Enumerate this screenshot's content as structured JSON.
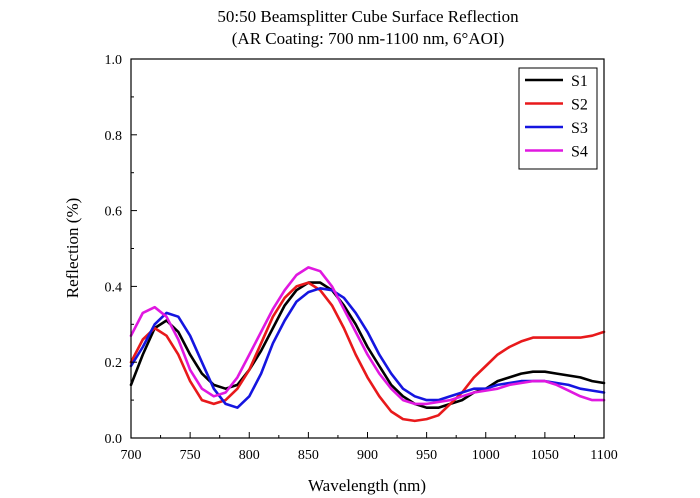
{
  "chart_data": {
    "type": "line",
    "title": "50:50 Beamsplitter Cube  Surface Reflection",
    "subtitle": "(AR Coating: 700 nm-1100 nm, 6°AOI)",
    "xlabel": "Wavelength (nm)",
    "ylabel": "Reflection (%)",
    "xlim": [
      700,
      1100
    ],
    "ylim": [
      0.0,
      1.0
    ],
    "xticks": [
      700,
      750,
      800,
      850,
      900,
      950,
      1000,
      1050,
      1100
    ],
    "yticks": [
      0.0,
      0.2,
      0.4,
      0.6,
      0.8,
      1.0
    ],
    "xtick_labels": [
      "700",
      "750",
      "800",
      "850",
      "900",
      "950",
      "1000",
      "1050",
      "1100"
    ],
    "ytick_labels": [
      "0.0",
      "0.2",
      "0.4",
      "0.6",
      "0.8",
      "1.0"
    ],
    "grid": false,
    "legend_position": "top-right",
    "x": [
      700,
      710,
      720,
      730,
      740,
      750,
      760,
      770,
      780,
      790,
      800,
      810,
      820,
      830,
      840,
      850,
      860,
      870,
      880,
      890,
      900,
      910,
      920,
      930,
      940,
      950,
      960,
      970,
      980,
      990,
      1000,
      1010,
      1020,
      1030,
      1040,
      1050,
      1060,
      1070,
      1080,
      1090,
      1100
    ],
    "series": [
      {
        "name": "S1",
        "color": "#000000",
        "values": [
          0.14,
          0.22,
          0.29,
          0.31,
          0.28,
          0.22,
          0.17,
          0.14,
          0.13,
          0.14,
          0.18,
          0.23,
          0.29,
          0.35,
          0.39,
          0.41,
          0.41,
          0.39,
          0.35,
          0.3,
          0.24,
          0.19,
          0.14,
          0.11,
          0.09,
          0.08,
          0.08,
          0.09,
          0.1,
          0.12,
          0.13,
          0.15,
          0.16,
          0.17,
          0.175,
          0.175,
          0.17,
          0.165,
          0.16,
          0.15,
          0.145
        ]
      },
      {
        "name": "S2",
        "color": "#e8191b",
        "values": [
          0.2,
          0.26,
          0.29,
          0.27,
          0.22,
          0.15,
          0.1,
          0.09,
          0.1,
          0.13,
          0.18,
          0.25,
          0.32,
          0.37,
          0.4,
          0.41,
          0.39,
          0.35,
          0.29,
          0.22,
          0.16,
          0.11,
          0.07,
          0.05,
          0.045,
          0.05,
          0.06,
          0.09,
          0.12,
          0.16,
          0.19,
          0.22,
          0.24,
          0.255,
          0.265,
          0.265,
          0.265,
          0.265,
          0.265,
          0.27,
          0.28
        ]
      },
      {
        "name": "S3",
        "color": "#1515e0",
        "values": [
          0.19,
          0.24,
          0.3,
          0.33,
          0.32,
          0.27,
          0.2,
          0.13,
          0.09,
          0.08,
          0.11,
          0.17,
          0.25,
          0.31,
          0.36,
          0.385,
          0.395,
          0.39,
          0.37,
          0.33,
          0.28,
          0.22,
          0.17,
          0.13,
          0.11,
          0.1,
          0.1,
          0.11,
          0.12,
          0.13,
          0.13,
          0.14,
          0.145,
          0.15,
          0.15,
          0.15,
          0.145,
          0.14,
          0.13,
          0.125,
          0.12
        ]
      },
      {
        "name": "S4",
        "color": "#e018e0",
        "values": [
          0.27,
          0.33,
          0.345,
          0.32,
          0.26,
          0.18,
          0.13,
          0.11,
          0.12,
          0.16,
          0.22,
          0.28,
          0.34,
          0.39,
          0.43,
          0.45,
          0.44,
          0.4,
          0.34,
          0.28,
          0.22,
          0.17,
          0.13,
          0.1,
          0.09,
          0.09,
          0.095,
          0.1,
          0.11,
          0.12,
          0.125,
          0.13,
          0.14,
          0.145,
          0.15,
          0.15,
          0.14,
          0.125,
          0.11,
          0.1,
          0.1
        ]
      }
    ]
  }
}
